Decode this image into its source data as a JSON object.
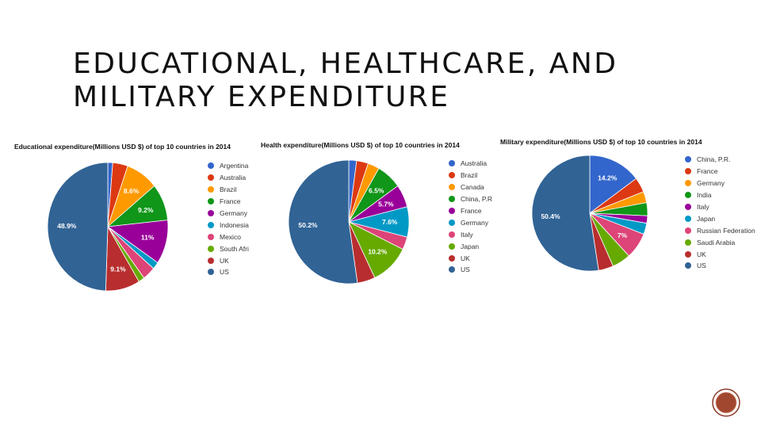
{
  "slide": {
    "title_line1": "EDUCATIONAL, HEALTHCARE, AND",
    "title_line2": "MILITARY EXPENDITURE"
  },
  "chart_data": [
    {
      "type": "pie",
      "title": "Educational expenditure(Millions USD $) of top 10 countries in 2014",
      "categories": [
        "Argentina",
        "Australia",
        "Brazil",
        "France",
        "Germany",
        "Indonesia",
        "Mexico",
        "South Afri",
        "UK",
        "US"
      ],
      "values": [
        1.3,
        4.0,
        8.6,
        9.2,
        11.0,
        1.8,
        3.4,
        1.6,
        9.1,
        48.9
      ],
      "colors": [
        "#3366cc",
        "#dc3912",
        "#ff9900",
        "#109618",
        "#990099",
        "#0099c6",
        "#dd4477",
        "#66aa00",
        "#b82e2e",
        "#316395"
      ],
      "data_labels": [
        "",
        "",
        "8.6%",
        "9.2%",
        "11%",
        "",
        "",
        "",
        "9.1%",
        "48.9%"
      ],
      "legend_position": "right"
    },
    {
      "type": "pie",
      "title": "Health expenditure(Millions USD $) of top 10 countries in 2014",
      "categories": [
        "Australia",
        "Brazil",
        "Canada",
        "China, P.R",
        "France",
        "Germany",
        "Italy",
        "Japan",
        "UK",
        "US"
      ],
      "values": [
        2.0,
        3.0,
        3.0,
        6.5,
        5.7,
        7.6,
        3.2,
        10.2,
        4.6,
        50.2
      ],
      "colors": [
        "#3366cc",
        "#dc3912",
        "#ff9900",
        "#109618",
        "#990099",
        "#0099c6",
        "#dd4477",
        "#66aa00",
        "#b82e2e",
        "#316395"
      ],
      "data_labels": [
        "",
        "",
        "",
        "6.5%",
        "5.7%",
        "7.6%",
        "",
        "10.2%",
        "",
        "50.2%"
      ],
      "legend_position": "right"
    },
    {
      "type": "pie",
      "title": "Military expenditure(Millions USD $) of top 10 countries in 2014",
      "categories": [
        "China, P.R.",
        "France",
        "Germany",
        "India",
        "Italy",
        "Japan",
        "Russian Federation",
        "Saudi Arabia",
        "UK",
        "US"
      ],
      "values": [
        14.2,
        4.0,
        3.0,
        3.5,
        2.0,
        3.0,
        7.0,
        5.0,
        4.0,
        50.4
      ],
      "colors": [
        "#3366cc",
        "#dc3912",
        "#ff9900",
        "#109618",
        "#990099",
        "#0099c6",
        "#dd4477",
        "#66aa00",
        "#b82e2e",
        "#316395"
      ],
      "data_labels": [
        "14.2%",
        "",
        "",
        "",
        "",
        "",
        "7%",
        "",
        "",
        "50.4%"
      ],
      "legend_position": "right"
    }
  ]
}
